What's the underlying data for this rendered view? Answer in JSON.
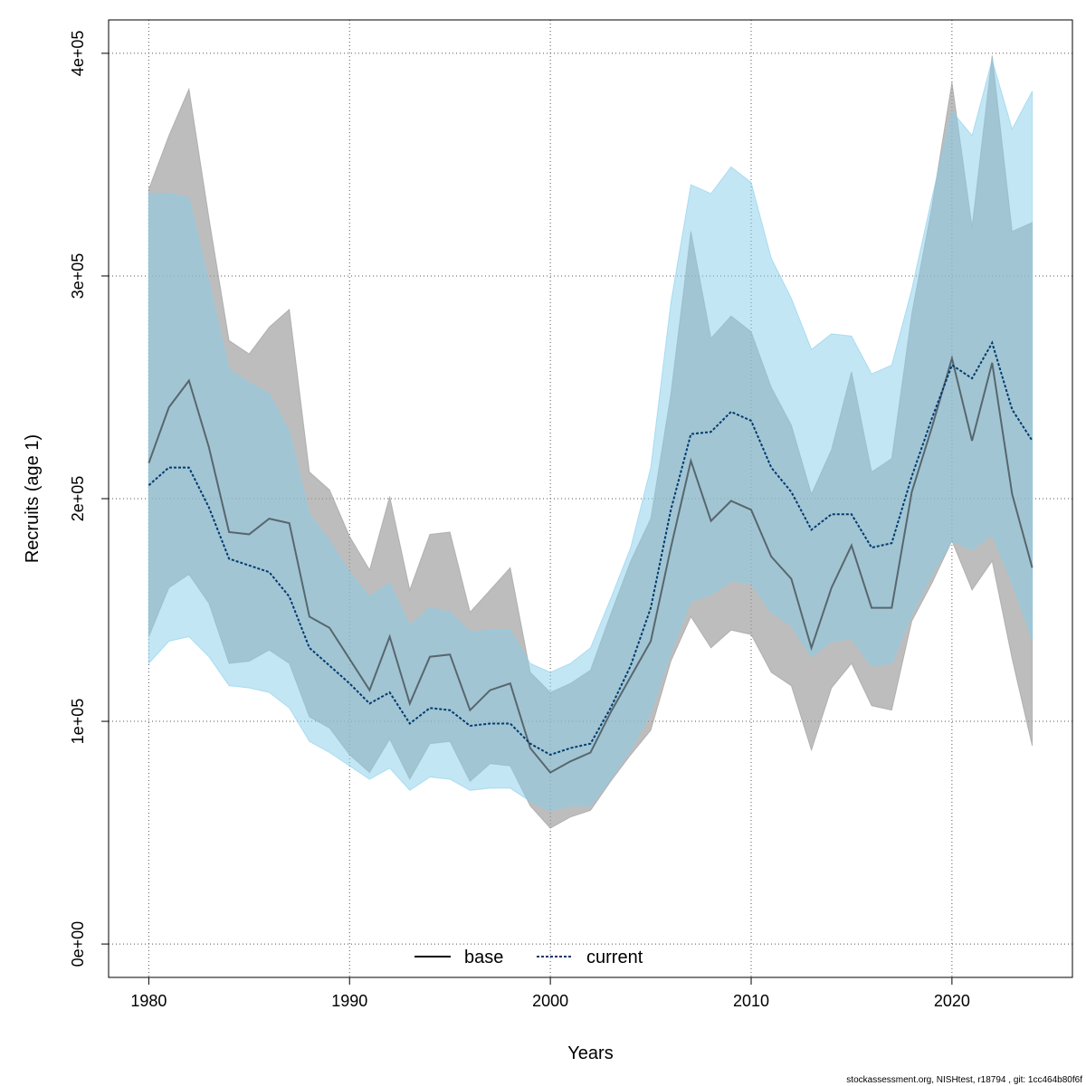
{
  "chart_data": {
    "type": "area",
    "xlabel": "Years",
    "ylabel": "Recruits (age 1)",
    "xlim": [
      1978,
      2026
    ],
    "ylim": [
      -15000,
      415000
    ],
    "x_ticks": [
      1980,
      1990,
      2000,
      2010,
      2020
    ],
    "y_ticks": [
      0,
      100000,
      200000,
      300000,
      400000
    ],
    "y_tick_labels": [
      "0e+00",
      "1e+05",
      "2e+05",
      "3e+05",
      "4e+05"
    ],
    "grid": true,
    "legend_position": "bottom-center",
    "x": [
      1980,
      1981,
      1982,
      1983,
      1984,
      1985,
      1986,
      1987,
      1988,
      1989,
      1990,
      1991,
      1992,
      1993,
      1994,
      1995,
      1996,
      1997,
      1998,
      1999,
      2000,
      2001,
      2002,
      2003,
      2004,
      2005,
      2006,
      2007,
      2008,
      2009,
      2010,
      2011,
      2012,
      2013,
      2014,
      2015,
      2016,
      2017,
      2018,
      2019,
      2020,
      2021,
      2022,
      2023,
      2024
    ],
    "series": [
      {
        "name": "base",
        "line_style": "solid",
        "color": "#1a1a1a",
        "band_color": "#999999",
        "values": [
          216000,
          241000,
          253000,
          223000,
          185000,
          184000,
          191000,
          189000,
          147000,
          142000,
          128000,
          114000,
          138000,
          108000,
          129000,
          130000,
          105000,
          114000,
          117000,
          88000,
          77000,
          82000,
          86000,
          104000,
          120000,
          136000,
          178000,
          217000,
          190000,
          199000,
          195000,
          174000,
          164000,
          133000,
          160000,
          179000,
          151000,
          151000,
          203000,
          232000,
          263000,
          226000,
          261000,
          202000,
          169000
        ],
        "lower": [
          138000,
          160000,
          166000,
          153000,
          126000,
          127000,
          132000,
          126000,
          102000,
          97000,
          85000,
          77000,
          92000,
          74000,
          90000,
          91000,
          73000,
          81000,
          80000,
          62000,
          52000,
          57000,
          60000,
          73000,
          85000,
          96000,
          127000,
          147000,
          133000,
          141000,
          139000,
          122000,
          116000,
          87000,
          115000,
          126000,
          107000,
          105000,
          145000,
          162000,
          181000,
          159000,
          172000,
          128000,
          89000
        ],
        "upper": [
          339000,
          363000,
          384000,
          326000,
          271000,
          265000,
          277000,
          285000,
          212000,
          204000,
          183000,
          168000,
          201000,
          159000,
          184000,
          185000,
          149000,
          159000,
          169000,
          122000,
          113000,
          117000,
          123000,
          148000,
          172000,
          191000,
          247000,
          320000,
          272000,
          282000,
          275000,
          250000,
          233000,
          202000,
          222000,
          257000,
          212000,
          218000,
          283000,
          331000,
          387000,
          322000,
          399000,
          320000,
          324000
        ]
      },
      {
        "name": "current",
        "line_style": "dotted",
        "color": "#003b6f",
        "band_color": "#87ceeb",
        "values": [
          206000,
          214000,
          214000,
          196000,
          173000,
          170000,
          167000,
          156000,
          133000,
          125000,
          117000,
          108000,
          113000,
          99000,
          106000,
          105000,
          98000,
          99000,
          99000,
          90000,
          85000,
          88000,
          90000,
          106000,
          125000,
          151000,
          195000,
          229000,
          230000,
          239000,
          235000,
          214000,
          203000,
          186000,
          193000,
          193000,
          178000,
          180000,
          210000,
          236000,
          260000,
          254000,
          270000,
          240000,
          226000
        ],
        "lower": [
          126000,
          136000,
          138000,
          129000,
          116000,
          115000,
          113000,
          106000,
          91000,
          86000,
          80000,
          74000,
          79000,
          69000,
          75000,
          74000,
          69000,
          70000,
          70000,
          64000,
          60000,
          62000,
          62000,
          74000,
          87000,
          104000,
          131000,
          154000,
          157000,
          163000,
          162000,
          149000,
          143000,
          129000,
          136000,
          137000,
          125000,
          126000,
          148000,
          166000,
          181000,
          177000,
          184000,
          162000,
          137000
        ],
        "upper": [
          337000,
          337000,
          335000,
          297000,
          258000,
          252000,
          247000,
          230000,
          193000,
          181000,
          167000,
          156000,
          162000,
          143000,
          151000,
          149000,
          140000,
          141000,
          141000,
          126000,
          122000,
          126000,
          133000,
          155000,
          178000,
          214000,
          288000,
          341000,
          337000,
          349000,
          342000,
          308000,
          290000,
          267000,
          274000,
          273000,
          256000,
          260000,
          294000,
          335000,
          374000,
          363000,
          397000,
          366000,
          383000
        ]
      }
    ]
  },
  "footer": {
    "credit": "stockassessment.org, NISHtest, r18794 , git: 1cc464b80f6f"
  }
}
